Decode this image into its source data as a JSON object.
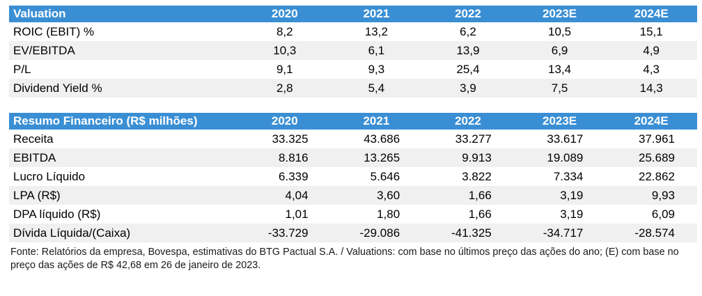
{
  "valuation": {
    "title": "Valuation",
    "years": [
      "2020",
      "2021",
      "2022",
      "2023E",
      "2024E"
    ],
    "rows": [
      {
        "label": "ROIC (EBIT) %",
        "values": [
          "8,2",
          "13,2",
          "6,2",
          "10,5",
          "15,1"
        ]
      },
      {
        "label": "EV/EBITDA",
        "values": [
          "10,3",
          "6,1",
          "13,9",
          "6,9",
          "4,9"
        ]
      },
      {
        "label": "P/L",
        "values": [
          "9,1",
          "9,3",
          "25,4",
          "13,4",
          "4,3"
        ]
      },
      {
        "label": "Dividend Yield %",
        "values": [
          "2,8",
          "5,4",
          "3,9",
          "7,5",
          "14,3"
        ]
      }
    ]
  },
  "financials": {
    "title": "Resumo Financeiro (R$ milhões)",
    "years": [
      "2020",
      "2021",
      "2022",
      "2023E",
      "2024E"
    ],
    "rows": [
      {
        "label": "Receita",
        "values": [
          "33.325",
          "43.686",
          "33.277",
          "33.617",
          "37.961"
        ]
      },
      {
        "label": "EBITDA",
        "values": [
          "8.816",
          "13.265",
          "9.913",
          "19.089",
          "25.689"
        ]
      },
      {
        "label": "Lucro Líquido",
        "values": [
          "6.339",
          "5.646",
          "3.822",
          "7.334",
          "22.862"
        ]
      },
      {
        "label": "LPA (R$)",
        "values": [
          "4,04",
          "3,60",
          "1,66",
          "3,19",
          "9,93"
        ]
      },
      {
        "label": "DPA líquido (R$)",
        "values": [
          "1,01",
          "1,80",
          "1,66",
          "3,19",
          "6,09"
        ]
      },
      {
        "label": "Dívida Líquida/(Caixa)",
        "values": [
          "-33.729",
          "-29.086",
          "-41.325",
          "-34.717",
          "-28.574"
        ]
      }
    ]
  },
  "footnote": "Fonte: Relatórios da empresa, Bovespa, estimativas do BTG Pactual S.A. / Valuations: com base no últimos preço das ações do ano; (E) com base no preço das ações de R$ 42,68 em 26 de janeiro de 2023.",
  "colors": {
    "header_bg": "#3a8fd4",
    "header_text": "#ffffff",
    "stripe": "#f0f0f0"
  }
}
